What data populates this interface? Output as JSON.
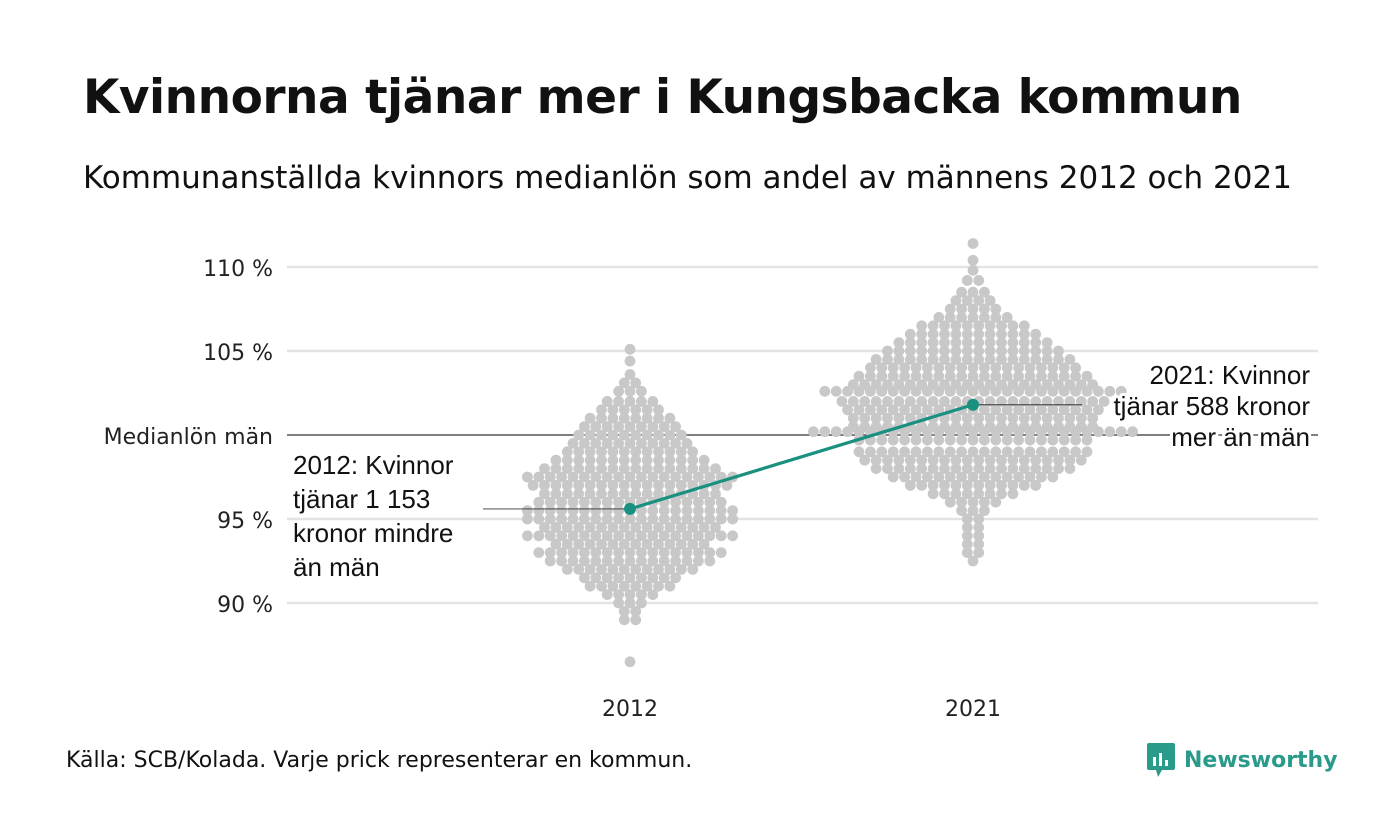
{
  "header": {
    "title": "Kvinnorna tjänar mer i Kungsbacka kommun",
    "subtitle": "Kommunanställda kvinnors medianlön som andel av männens 2012 och 2021"
  },
  "footer": {
    "source": "Källa: SCB/Kolada. Varje prick representerar en kommun.",
    "brand": "Newsworthy",
    "brand_icon": "newsworthy-logo-icon"
  },
  "colors": {
    "dots": "#c8c8c8",
    "highlight": "#1a9080",
    "grid": "#e3e3e3",
    "reference": "#333333",
    "brand": "#2a9a8a"
  },
  "chart_data": {
    "type": "scatter",
    "x_categories": [
      "2012",
      "2021"
    ],
    "y_ticks": [
      {
        "value": 90,
        "label": "90 %"
      },
      {
        "value": 95,
        "label": "95 %"
      },
      {
        "value": 105,
        "label": "105 %"
      },
      {
        "value": 110,
        "label": "110 %"
      }
    ],
    "ylim": [
      86,
      111.5
    ],
    "grid": true,
    "reference_line": {
      "value": 100,
      "label": "Medianlön män"
    },
    "series": [
      {
        "category": "2012",
        "note": "bee-swarm of municipalities",
        "distribution": [
          {
            "y": 105.1,
            "n": 1
          },
          {
            "y": 104.4,
            "n": 1
          },
          {
            "y": 103.6,
            "n": 1
          },
          {
            "y": 103.1,
            "n": 2
          },
          {
            "y": 102.6,
            "n": 3
          },
          {
            "y": 102.0,
            "n": 5
          },
          {
            "y": 101.5,
            "n": 6
          },
          {
            "y": 101.0,
            "n": 8
          },
          {
            "y": 100.5,
            "n": 9
          },
          {
            "y": 100.0,
            "n": 10
          },
          {
            "y": 99.5,
            "n": 11
          },
          {
            "y": 99.0,
            "n": 12
          },
          {
            "y": 98.5,
            "n": 14
          },
          {
            "y": 98.0,
            "n": 16
          },
          {
            "y": 97.5,
            "n": 19
          },
          {
            "y": 97.0,
            "n": 18
          },
          {
            "y": 96.5,
            "n": 16
          },
          {
            "y": 96.0,
            "n": 17
          },
          {
            "y": 95.5,
            "n": 19
          },
          {
            "y": 95.0,
            "n": 19
          },
          {
            "y": 94.5,
            "n": 16
          },
          {
            "y": 94.0,
            "n": 19
          },
          {
            "y": 93.5,
            "n": 14
          },
          {
            "y": 93.0,
            "n": 17
          },
          {
            "y": 92.5,
            "n": 15
          },
          {
            "y": 92.0,
            "n": 12
          },
          {
            "y": 91.5,
            "n": 9
          },
          {
            "y": 91.0,
            "n": 8
          },
          {
            "y": 90.5,
            "n": 5
          },
          {
            "y": 90.0,
            "n": 3
          },
          {
            "y": 89.5,
            "n": 2
          },
          {
            "y": 89.0,
            "n": 2
          },
          {
            "y": 86.5,
            "n": 1
          }
        ],
        "highlight": {
          "y": 95.6,
          "label": "2012: Kvinnor tjänar 1 153 kronor mindre än män",
          "label_lines": [
            "2012: Kvinnor",
            "tjänar 1 153",
            "kronor mindre",
            "än män"
          ]
        }
      },
      {
        "category": "2021",
        "note": "bee-swarm of municipalities",
        "distribution": [
          {
            "y": 111.4,
            "n": 1
          },
          {
            "y": 110.4,
            "n": 1
          },
          {
            "y": 109.8,
            "n": 1
          },
          {
            "y": 109.2,
            "n": 2
          },
          {
            "y": 108.5,
            "n": 3
          },
          {
            "y": 108.0,
            "n": 4
          },
          {
            "y": 107.5,
            "n": 5
          },
          {
            "y": 107.0,
            "n": 7
          },
          {
            "y": 106.5,
            "n": 10
          },
          {
            "y": 106.0,
            "n": 12
          },
          {
            "y": 105.5,
            "n": 14
          },
          {
            "y": 105.0,
            "n": 16
          },
          {
            "y": 104.5,
            "n": 18
          },
          {
            "y": 104.0,
            "n": 19
          },
          {
            "y": 103.5,
            "n": 21
          },
          {
            "y": 103.0,
            "n": 22
          },
          {
            "y": 102.6,
            "n": 27
          },
          {
            "y": 102.0,
            "n": 24
          },
          {
            "y": 101.5,
            "n": 23
          },
          {
            "y": 101.0,
            "n": 22
          },
          {
            "y": 100.5,
            "n": 22
          },
          {
            "y": 100.2,
            "n": 29
          },
          {
            "y": 99.7,
            "n": 21
          },
          {
            "y": 99.0,
            "n": 21
          },
          {
            "y": 98.5,
            "n": 20
          },
          {
            "y": 98.0,
            "n": 18
          },
          {
            "y": 97.5,
            "n": 15
          },
          {
            "y": 97.0,
            "n": 12
          },
          {
            "y": 96.5,
            "n": 8
          },
          {
            "y": 96.0,
            "n": 5
          },
          {
            "y": 95.5,
            "n": 3
          },
          {
            "y": 95.0,
            "n": 2
          },
          {
            "y": 94.5,
            "n": 2
          },
          {
            "y": 94.0,
            "n": 2
          },
          {
            "y": 93.5,
            "n": 2
          },
          {
            "y": 93.0,
            "n": 2
          },
          {
            "y": 92.5,
            "n": 1
          }
        ],
        "highlight": {
          "y": 101.8,
          "label": "2021: Kvinnor tjänar 588 kronor mer än män",
          "label_lines": [
            "2021: Kvinnor",
            "tjänar 588 kronor",
            "mer än män"
          ]
        }
      }
    ],
    "highlight_series_name": "Kungsbacka"
  }
}
